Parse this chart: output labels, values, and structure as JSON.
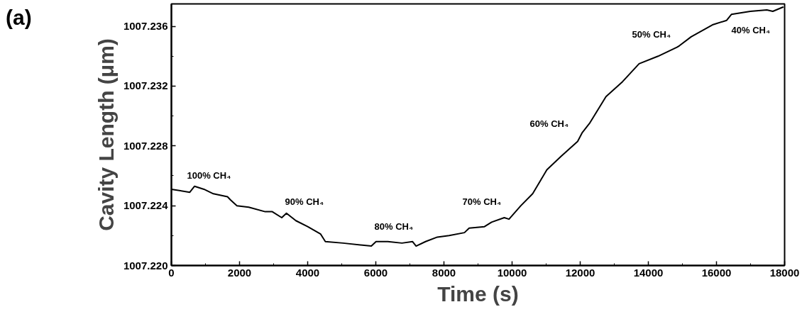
{
  "chart_data": {
    "type": "line",
    "title": "(a)",
    "xlabel": "Time (s)",
    "ylabel": "Cavity Length (μm)",
    "xlim": [
      0,
      18000
    ],
    "ylim": [
      1007.22,
      1007.2375
    ],
    "xticks": [
      0,
      2000,
      4000,
      6000,
      8000,
      10000,
      12000,
      14000,
      16000,
      18000
    ],
    "yticks": [
      {
        "value": 1007.22,
        "label": "1007.220"
      },
      {
        "value": 1007.224,
        "label": "1007.224"
      },
      {
        "value": 1007.228,
        "label": "1007.228"
      },
      {
        "value": 1007.232,
        "label": "1007.232"
      },
      {
        "value": 1007.236,
        "label": "1007.236"
      }
    ],
    "grid": false,
    "marker": "none",
    "line_style": "solid",
    "series": [
      {
        "color": "#000000",
        "x": [
          0,
          540,
          680,
          955,
          1232,
          1647,
          1730,
          1924,
          2270,
          2754,
          2962,
          3239,
          3377,
          3654,
          4000,
          4381,
          4519,
          5038,
          5869,
          6007,
          6353,
          6768,
          7080,
          7183,
          7460,
          7806,
          8152,
          8602,
          8740,
          9190,
          9398,
          9771,
          9910,
          10257,
          10604,
          11021,
          11438,
          11924,
          12063,
          12271,
          12757,
          13243,
          13729,
          14285,
          14840,
          14910,
          15257,
          15882,
          16299,
          16438,
          16993,
          17479,
          17653,
          17965
        ],
        "values": [
          1007.2251,
          1007.2249,
          1007.2253,
          1007.2251,
          1007.2248,
          1007.2246,
          1007.2244,
          1007.224,
          1007.2239,
          1007.2236,
          1007.2236,
          1007.2232,
          1007.2235,
          1007.223,
          1007.2226,
          1007.2221,
          1007.2216,
          1007.2215,
          1007.2213,
          1007.2216,
          1007.2216,
          1007.2215,
          1007.2216,
          1007.2213,
          1007.2216,
          1007.2219,
          1007.222,
          1007.2222,
          1007.2225,
          1007.2226,
          1007.2229,
          1007.2232,
          1007.2231,
          1007.224,
          1007.2248,
          1007.2264,
          1007.2273,
          1007.2283,
          1007.2289,
          1007.2295,
          1007.2313,
          1007.2323,
          1007.2335,
          1007.234,
          1007.2346,
          1007.2347,
          1007.2353,
          1007.2361,
          1007.2364,
          1007.2368,
          1007.237,
          1007.2371,
          1007.237,
          1007.2373
        ]
      }
    ],
    "annotations": [
      "100% CH₄",
      "90% CH₄",
      "80% CH₄",
      "70% CH₄",
      "60% CH₄",
      "50% CH₄",
      "40% CH₄"
    ]
  }
}
